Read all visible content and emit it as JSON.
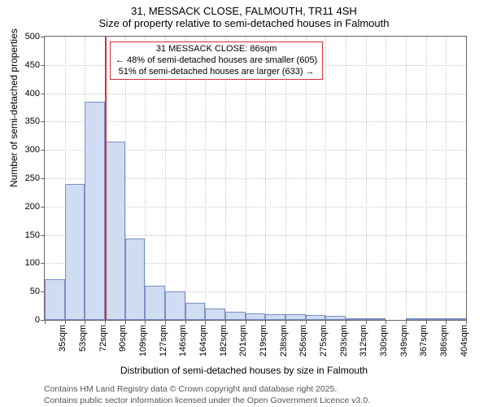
{
  "title": {
    "main": "31, MESSACK CLOSE, FALMOUTH, TR11 4SH",
    "sub": "Size of property relative to semi-detached houses in Falmouth"
  },
  "axes": {
    "ylabel": "Number of semi-detached properties",
    "xlabel": "Distribution of semi-detached houses by size in Falmouth",
    "ylim": [
      0,
      500
    ],
    "ytick_step": 50,
    "label_fontsize": 12,
    "tick_fontsize": 11
  },
  "chart": {
    "type": "histogram",
    "bar_color": "#cfdcf2",
    "bar_border_color": "#7a8fc4",
    "background_color": "#ffffff",
    "grid_color": "#c9c9c9",
    "axis_border_color": "#666666",
    "x_start": 30,
    "x_bin_width": 18.67,
    "x_bins": 21,
    "x_tick_interval": 1,
    "x_tick_labels": [
      "35sqm",
      "53sqm",
      "72sqm",
      "90sqm",
      "109sqm",
      "127sqm",
      "146sqm",
      "164sqm",
      "182sqm",
      "201sqm",
      "219sqm",
      "238sqm",
      "256sqm",
      "275sqm",
      "293sqm",
      "312sqm",
      "330sqm",
      "349sqm",
      "367sqm",
      "386sqm",
      "404sqm"
    ],
    "values": [
      72,
      240,
      385,
      315,
      143,
      60,
      50,
      30,
      20,
      15,
      12,
      10,
      10,
      8,
      7,
      3,
      2,
      0,
      2,
      2,
      2
    ]
  },
  "marker": {
    "position_sqm": 86,
    "line_color": "#d72f2f",
    "box_border_color": "#d72f2f",
    "line1": "31 MESSACK CLOSE: 86sqm",
    "line2": "← 48% of semi-detached houses are smaller (605)",
    "line3": "51% of semi-detached houses are larger (633) →"
  },
  "footer": {
    "line1": "Contains HM Land Registry data © Crown copyright and database right 2025.",
    "line2": "Contains public sector information licensed under the Open Government Licence v3.0."
  }
}
